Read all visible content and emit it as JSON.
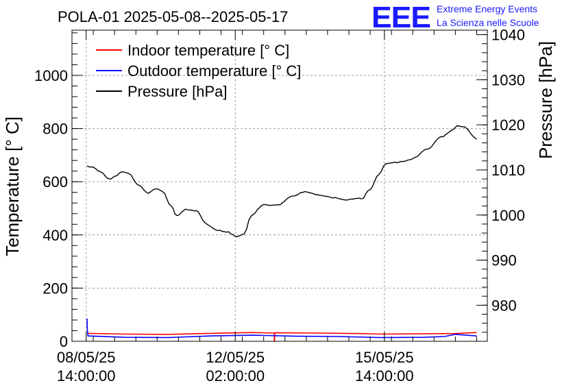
{
  "chart_data": {
    "type": "line",
    "title": "POLA-01 2025-05-08--2025-05-17",
    "logo": {
      "mark": "EEE",
      "line1": "Extreme Energy Events",
      "line2": "La Scienza nelle Scuole",
      "color": "#1a1aff"
    },
    "ylabel": "Temperature [° C]",
    "y2label": "Pressure [hPa]",
    "ylim": [
      0,
      1170
    ],
    "y2lim": [
      972,
      1041
    ],
    "yticks": [
      "0",
      "200",
      "400",
      "600",
      "800",
      "1000"
    ],
    "y2ticks": [
      "980",
      "990",
      "1000",
      "1010",
      "1020",
      "1030",
      "1040"
    ],
    "xticks": [
      {
        "line1": "08/05/25",
        "line2": "14:00:00"
      },
      {
        "line1": "12/05/25",
        "line2": "02:00:00"
      },
      {
        "line1": "15/05/25",
        "line2": "14:00:00"
      }
    ],
    "xlim": [
      "2025-05-08 06:00",
      "2025-05-18 00:00"
    ],
    "grid": true,
    "legend_position": "top-left",
    "series": [
      {
        "name": "Indoor temperature [° C]",
        "axis": "left",
        "color": "#ff0000",
        "x": [
          "2025-05-08 14:50",
          "2025-05-09 12:00",
          "2025-05-10 12:00",
          "2025-05-11 12:00",
          "2025-05-12 12:00",
          "2025-05-13 00:00",
          "2025-05-13 00:01",
          "2025-05-13 00:10",
          "2025-05-13 00:11",
          "2025-05-14 00:00",
          "2025-05-15 00:00",
          "2025-05-15 12:00",
          "2025-05-16 12:00",
          "2025-05-17 06:00",
          "2025-05-17 18:00"
        ],
        "y": [
          30,
          27,
          26,
          30,
          33,
          31,
          0,
          0,
          32,
          31,
          29,
          27,
          28,
          29,
          33
        ]
      },
      {
        "name": "Outdoor temperature [° C]",
        "axis": "left",
        "color": "#0000ff",
        "x": [
          "2025-05-08 14:30",
          "2025-05-08 14:40",
          "2025-05-08 15:00",
          "2025-05-09 12:00",
          "2025-05-10 12:00",
          "2025-05-11 12:00",
          "2025-05-12 12:00",
          "2025-05-13 12:00",
          "2025-05-14 12:00",
          "2025-05-15 12:00",
          "2025-05-16 12:00",
          "2025-05-17 00:00",
          "2025-05-17 06:00",
          "2025-05-17 18:00"
        ],
        "y": [
          85,
          45,
          20,
          15,
          14,
          20,
          23,
          19,
          18,
          14,
          15,
          18,
          26,
          20
        ]
      },
      {
        "name": "Pressure [hPa]",
        "axis": "right",
        "color": "#000000",
        "x": [
          "2025-05-08 14:30",
          "2025-05-08 18:00",
          "2025-05-08 22:00",
          "2025-05-09 03:00",
          "2025-05-09 06:00",
          "2025-05-09 10:00",
          "2025-05-09 14:00",
          "2025-05-09 19:00",
          "2025-05-10 01:00",
          "2025-05-10 05:00",
          "2025-05-10 09:00",
          "2025-05-10 14:00",
          "2025-05-10 17:00",
          "2025-05-10 22:00",
          "2025-05-11 04:00",
          "2025-05-11 10:00",
          "2025-05-11 15:00",
          "2025-05-11 21:00",
          "2025-05-12 03:00",
          "2025-05-12 07:00",
          "2025-05-12 11:00",
          "2025-05-12 18:00",
          "2025-05-13 02:00",
          "2025-05-13 10:00",
          "2025-05-13 17:00",
          "2025-05-14 04:00",
          "2025-05-14 15:00",
          "2025-05-15 01:00",
          "2025-05-15 06:00",
          "2025-05-15 11:00",
          "2025-05-15 15:00",
          "2025-05-15 21:00",
          "2025-05-16 05:00",
          "2025-05-16 14:00",
          "2025-05-16 22:00",
          "2025-05-17 04:00",
          "2025-05-17 07:00",
          "2025-05-17 11:00",
          "2025-05-17 18:00"
        ],
        "y": [
          1010.9,
          1010.6,
          1009.6,
          1008.0,
          1008.6,
          1009.6,
          1009.2,
          1006.7,
          1004.8,
          1005.8,
          1005.2,
          1002.0,
          999.9,
          1001.3,
          1001.0,
          998.0,
          996.7,
          996.2,
          995.2,
          995.8,
          999.8,
          1002.3,
          1002.3,
          1004.2,
          1005.2,
          1004.2,
          1003.4,
          1003.6,
          1005.6,
          1009.0,
          1011.4,
          1011.6,
          1012.3,
          1014.6,
          1017.4,
          1018.8,
          1019.8,
          1019.6,
          1016.8
        ]
      }
    ]
  }
}
